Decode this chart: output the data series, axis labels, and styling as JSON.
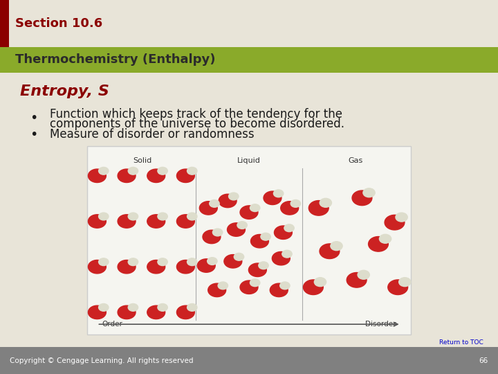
{
  "bg_color": "#e8e4d8",
  "header_bar_color": "#8b0000",
  "header_bar_width": 0.018,
  "section_text": "Section 10.6",
  "subtitle_bar_color": "#8aaa2a",
  "subtitle_text": "Thermochemistry (Enthalpy)",
  "subtitle_text_color": "#2b2b2b",
  "title_text": "Entropy, S",
  "title_color": "#8b0000",
  "bullet1_line1": "Function which keeps track of the tendency for the",
  "bullet1_line2": "components of the universe to become disordered.",
  "bullet2": "Measure of disorder or randomness",
  "bullet_color": "#1a1a1a",
  "footer_bg": "#808080",
  "footer_text": "Copyright © Cengage Learning. All rights reserved",
  "footer_page": "66",
  "return_toc_text": "Return to TOC",
  "return_toc_color": "#0000cc",
  "image_placeholder_color": "#f5f5f0",
  "image_border_color": "#cccccc"
}
